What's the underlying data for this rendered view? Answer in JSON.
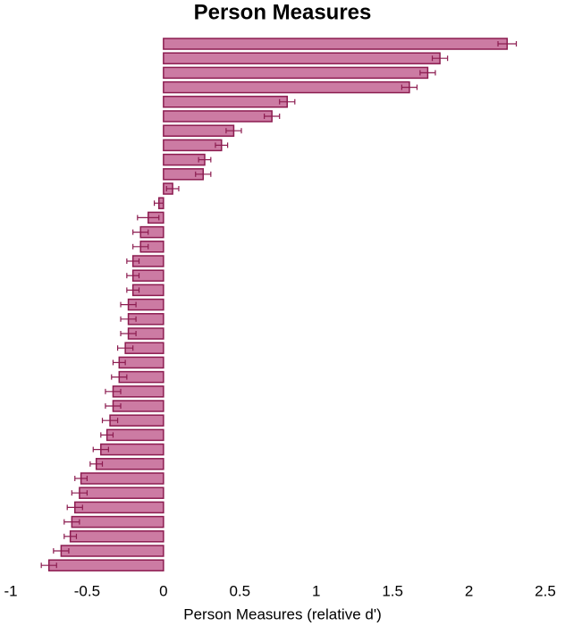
{
  "chart_data": {
    "type": "bar",
    "orientation": "horizontal",
    "title": "Person Measures",
    "xlabel": "Person Measures (relative d')",
    "color": "#cc7ba3",
    "edge_color": "#8c1c50",
    "values": [
      2.25,
      1.81,
      1.73,
      1.61,
      0.81,
      0.71,
      0.46,
      0.38,
      0.27,
      0.26,
      0.06,
      -0.03,
      -0.1,
      -0.15,
      -0.15,
      -0.2,
      -0.2,
      -0.2,
      -0.23,
      -0.23,
      -0.23,
      -0.25,
      -0.29,
      -0.29,
      -0.33,
      -0.33,
      -0.35,
      -0.37,
      -0.41,
      -0.44,
      -0.54,
      -0.55,
      -0.58,
      -0.6,
      -0.61,
      -0.67,
      -0.75
    ],
    "errors": [
      0.06,
      0.05,
      0.05,
      0.05,
      0.05,
      0.05,
      0.05,
      0.04,
      0.04,
      0.05,
      0.04,
      0.03,
      0.07,
      0.05,
      0.05,
      0.04,
      0.04,
      0.04,
      0.05,
      0.05,
      0.05,
      0.05,
      0.04,
      0.05,
      0.05,
      0.05,
      0.05,
      0.04,
      0.05,
      0.04,
      0.04,
      0.05,
      0.05,
      0.05,
      0.04,
      0.05,
      0.05
    ],
    "xlim": [
      -1,
      2.5
    ],
    "xticks": [
      -1,
      -0.5,
      0,
      0.5,
      1,
      1.5,
      2,
      2.5
    ],
    "grid": false
  }
}
